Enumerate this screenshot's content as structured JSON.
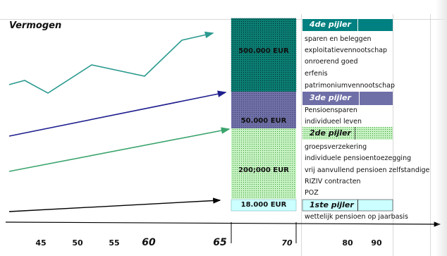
{
  "title": "Vermogen",
  "blocks": {
    "b4": "500.000 EUR",
    "b3": "50.000 EUR",
    "b2": "200;000 EUR",
    "b1": "18.000 EUR"
  },
  "pillars": {
    "p4": {
      "label": "4de pijler",
      "items": [
        "sparen  en beleggen",
        "exploitatievennootschap",
        "onroerend goed",
        "erfenis",
        "patrimoniumvennootschap"
      ]
    },
    "p3": {
      "label": "3de pijler",
      "items": [
        "Pensioensparen",
        "individueel leven"
      ]
    },
    "p2": {
      "label": "2de pijler",
      "items": [
        "groepsverzekering",
        "individuele pensioentoezegging",
        "vrij aanvullend pensioen zelfstandige",
        "RIZIV contracten",
        "POZ"
      ]
    },
    "p1": {
      "label": "1ste pijler",
      "items": [
        "wettelijk pensioen op jaarbasis"
      ]
    }
  },
  "axis_ticks": {
    "t45": "45",
    "t50": "50",
    "t55": "55",
    "t60": "60",
    "t65": "65",
    "t70": "70",
    "t80": "80",
    "t90": "90"
  },
  "colors": {
    "pillar4": "#008080",
    "pillar3": "#6f6fa8",
    "pillar2": "#9be09b",
    "pillar1": "#ccffff",
    "line4": "#2b9a8f",
    "line3": "#1f1f8f",
    "line2": "#3aa46c",
    "line1": "#000000"
  }
}
